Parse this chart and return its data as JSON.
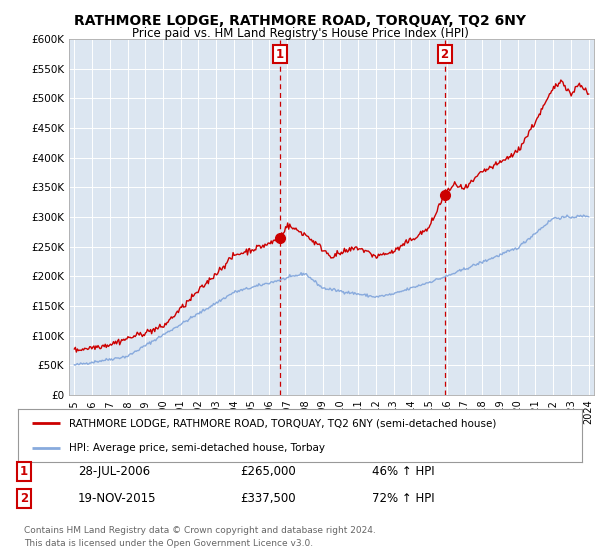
{
  "title": "RATHMORE LODGE, RATHMORE ROAD, TORQUAY, TQ2 6NY",
  "subtitle": "Price paid vs. HM Land Registry's House Price Index (HPI)",
  "background_color": "#dce6f1",
  "plot_bg_color": "#dce6f1",
  "sale1_date": "28-JUL-2006",
  "sale1_price": 265000,
  "sale1_label": "46% ↑ HPI",
  "sale1_x": 2006.57,
  "sale2_date": "19-NOV-2015",
  "sale2_price": 337500,
  "sale2_label": "72% ↑ HPI",
  "sale2_x": 2015.88,
  "red_line_color": "#cc0000",
  "blue_line_color": "#88aadd",
  "vline_color": "#cc0000",
  "legend_entry1": "RATHMORE LODGE, RATHMORE ROAD, TORQUAY, TQ2 6NY (semi-detached house)",
  "legend_entry2": "HPI: Average price, semi-detached house, Torbay",
  "footer": "Contains HM Land Registry data © Crown copyright and database right 2024.\nThis data is licensed under the Open Government Licence v3.0.",
  "ylim_min": 0,
  "ylim_max": 600000,
  "yticks": [
    0,
    50000,
    100000,
    150000,
    200000,
    250000,
    300000,
    350000,
    400000,
    450000,
    500000,
    550000,
    600000
  ],
  "year_start": 1995,
  "year_end": 2024
}
